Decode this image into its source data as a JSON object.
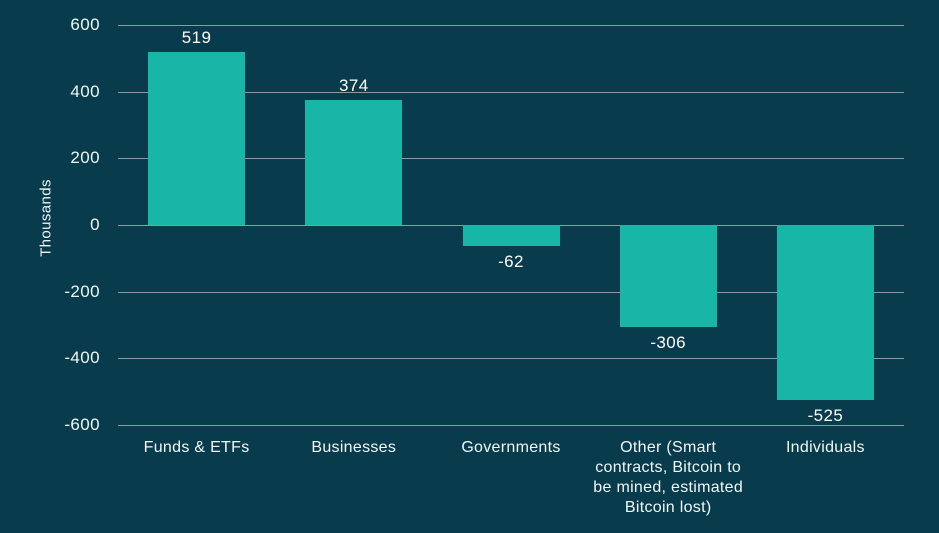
{
  "chart_data": {
    "type": "bar",
    "title": "",
    "ylabel": "Thousands",
    "xlabel": "",
    "ylim": [
      -600,
      600
    ],
    "yticks": [
      600,
      400,
      200,
      0,
      -200,
      -400,
      -600
    ],
    "grid": true,
    "legend": false,
    "categories": [
      "Funds & ETFs",
      "Businesses",
      "Governments",
      "Other (Smart contracts, Bitcoin to be mined, estimated Bitcoin lost)",
      "Individuals"
    ],
    "x_tick_labels": [
      "Funds & ETFs",
      "Businesses",
      "Governments",
      "Other (Smart\ncontracts, Bitcoin to\nbe mined, estimated\nBitcoin lost)",
      "Individuals"
    ],
    "values": [
      519,
      374,
      -62,
      -306,
      -525
    ],
    "value_labels": [
      "519",
      "374",
      "-62",
      "-306",
      "-525"
    ],
    "colors": {
      "background": "#083c4c",
      "bar": "#17b6a6",
      "gridline": "#8a9aa0",
      "text": "#f2f7f7"
    }
  }
}
